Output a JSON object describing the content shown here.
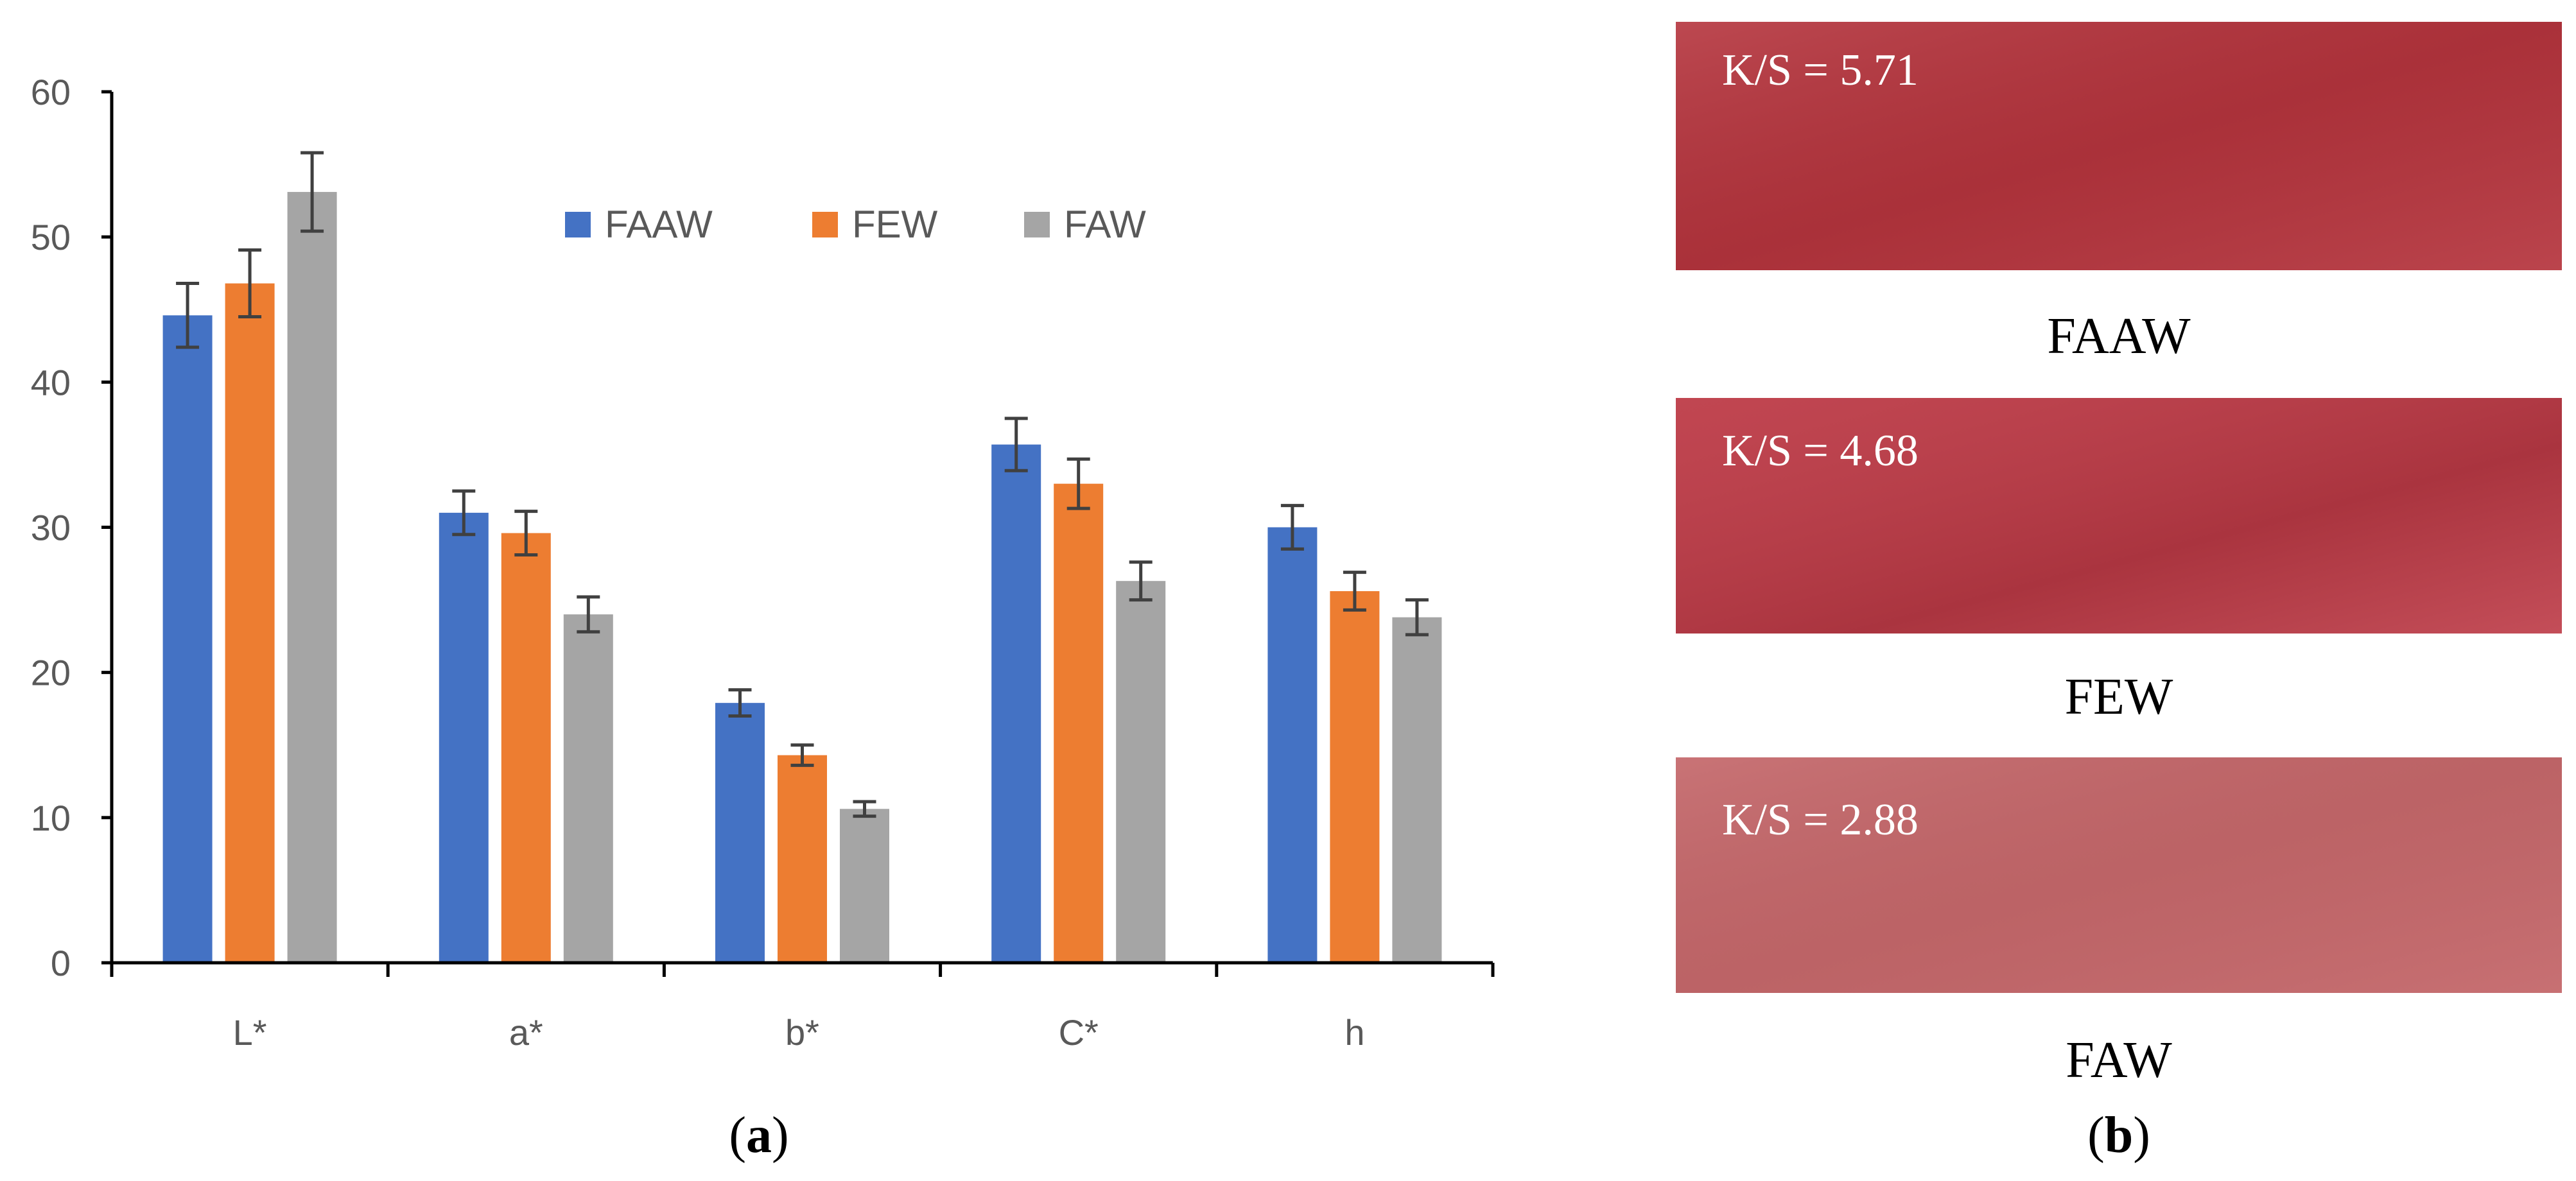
{
  "chart_data": {
    "type": "bar",
    "categories": [
      "L*",
      "a*",
      "b*",
      "C*",
      "h"
    ],
    "series": [
      {
        "name": "FAAW",
        "color": "#4472C4",
        "values": [
          44.6,
          31.0,
          17.9,
          35.7,
          30.0
        ],
        "errors": [
          2.2,
          1.5,
          0.9,
          1.8,
          1.5
        ]
      },
      {
        "name": "FEW",
        "color": "#ED7D31",
        "values": [
          46.8,
          29.6,
          14.3,
          33.0,
          25.6
        ],
        "errors": [
          2.3,
          1.5,
          0.7,
          1.7,
          1.3
        ]
      },
      {
        "name": "FAW",
        "color": "#A5A5A5",
        "values": [
          53.1,
          24.0,
          10.6,
          26.3,
          23.8
        ],
        "errors": [
          2.7,
          1.2,
          0.5,
          1.3,
          1.2
        ]
      }
    ],
    "ylim": [
      0,
      60
    ],
    "yticks": [
      0,
      10,
      20,
      30,
      40,
      50,
      60
    ],
    "legend_position": "top-center",
    "error_bar_color": "#404040",
    "grid": false
  },
  "panel_a_label": {
    "open": "(",
    "letter": "a",
    "close": ")"
  },
  "panel_b_label": {
    "open": "(",
    "letter": "b",
    "close": ")"
  },
  "swatches": [
    {
      "ks_text": "K/S = 5.71",
      "name": "FAAW",
      "color": "#B5343D"
    },
    {
      "ks_text": "K/S = 4.68",
      "name": "FEW",
      "color": "#BD3A46"
    },
    {
      "ks_text": "K/S = 2.88",
      "name": "FAW",
      "color": "#C4676A"
    }
  ]
}
